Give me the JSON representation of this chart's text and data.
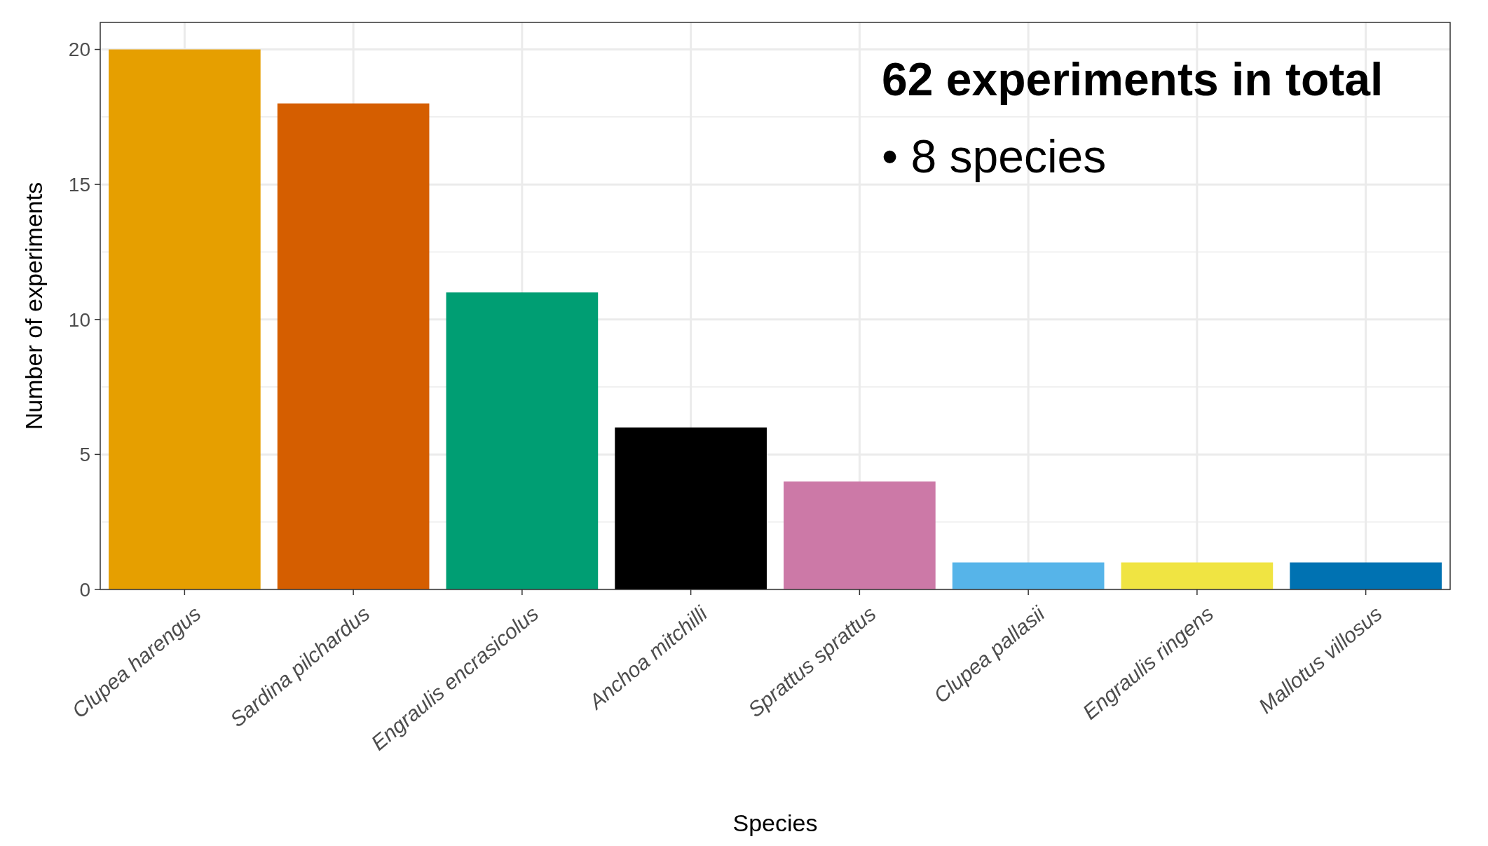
{
  "chart_data": {
    "type": "bar",
    "xlabel": "Species",
    "ylabel": "Number of experiments",
    "categories": [
      "Clupea harengus",
      "Sardina pilchardus",
      "Engraulis encrasicolus",
      "Anchoa mitchilli",
      "Sprattus sprattus",
      "Clupea pallasii",
      "Engraulis ringens",
      "Mallotus villosus"
    ],
    "values": [
      20,
      18,
      11,
      6,
      4,
      1,
      1,
      1
    ],
    "colors": [
      "#e69f00",
      "#d55e00",
      "#009e73",
      "#000000",
      "#cc79a7",
      "#56b4e9",
      "#f0e442",
      "#0072b2"
    ],
    "ylim": [
      0,
      21
    ],
    "yticks": [
      0,
      5,
      10,
      15,
      20
    ],
    "grid": true,
    "annotations": [
      "62 experiments in total",
      "• 8 species"
    ]
  }
}
